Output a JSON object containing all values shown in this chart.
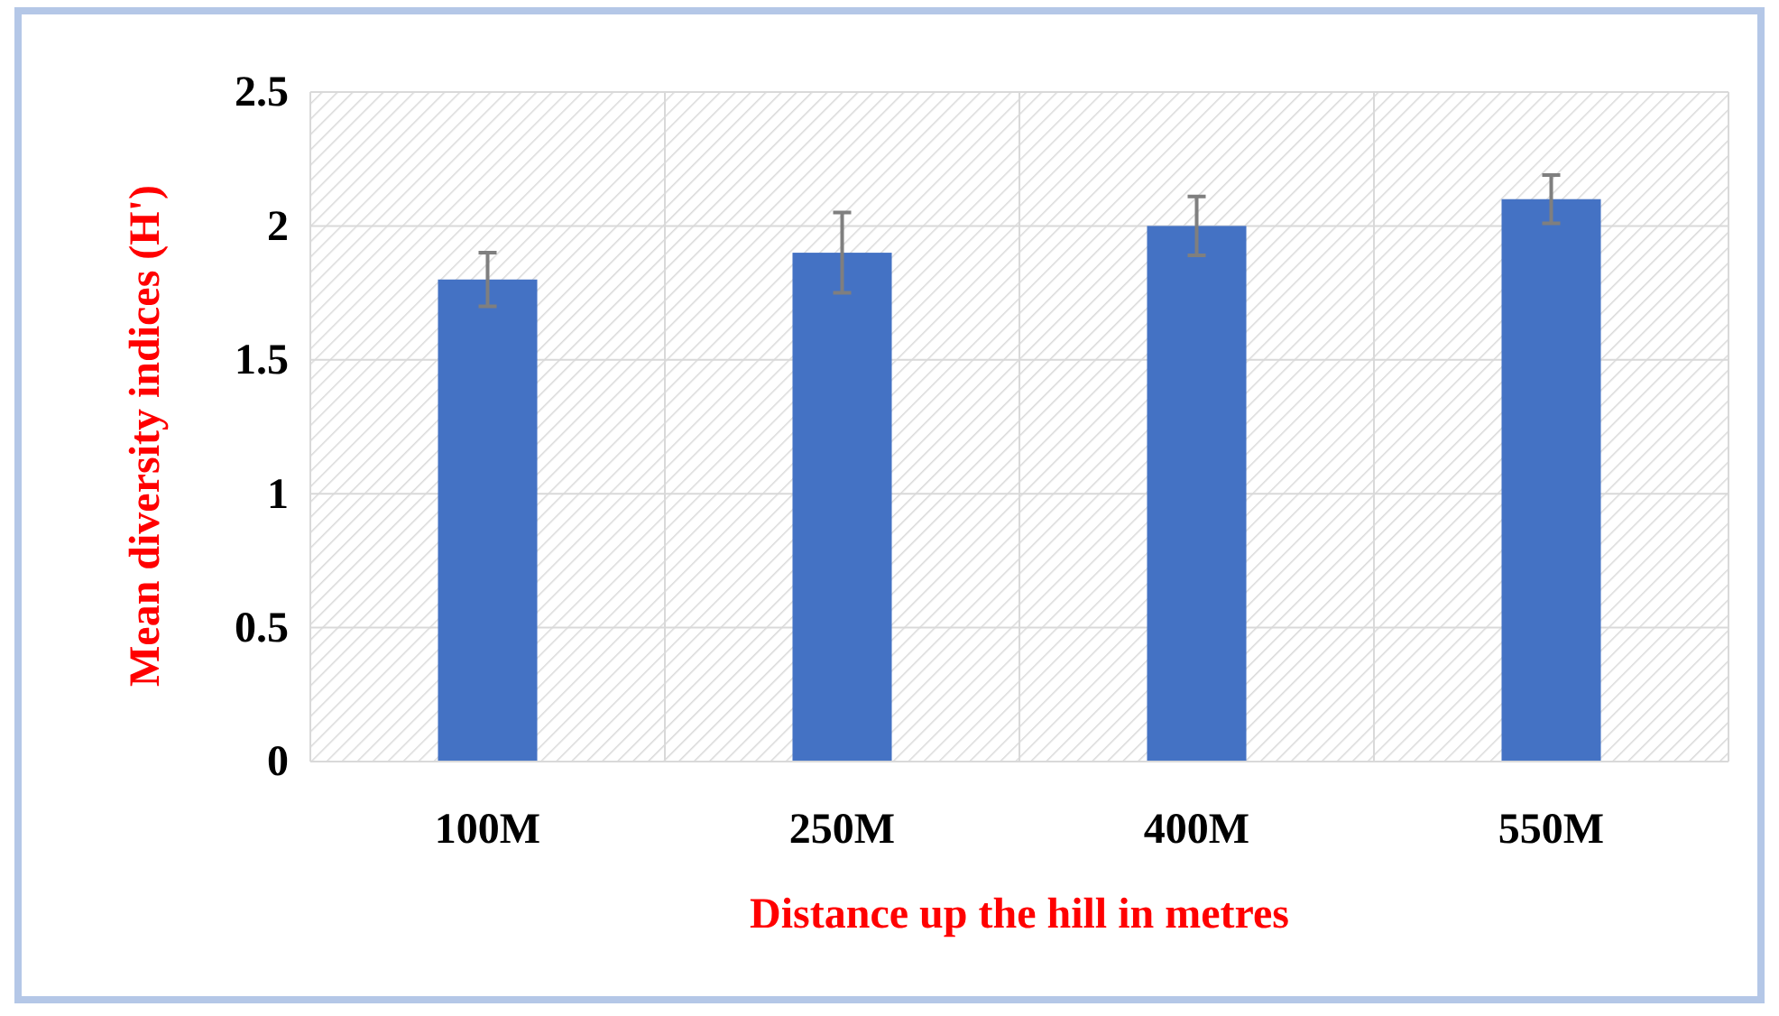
{
  "chart_data": {
    "type": "bar",
    "xlabel": "Distance up the hill in metres",
    "ylabel": "Mean diversity indices (H')",
    "categories": [
      "100M",
      "250M",
      "400M",
      "550M"
    ],
    "values": [
      1.8,
      1.9,
      2.0,
      2.1
    ],
    "errors": [
      0.1,
      0.15,
      0.11,
      0.09
    ],
    "color": "#4472c4",
    "ylim": [
      0,
      2.5
    ],
    "yticks": [
      0,
      0.5,
      1,
      1.5,
      2,
      2.5
    ],
    "grid": true
  }
}
